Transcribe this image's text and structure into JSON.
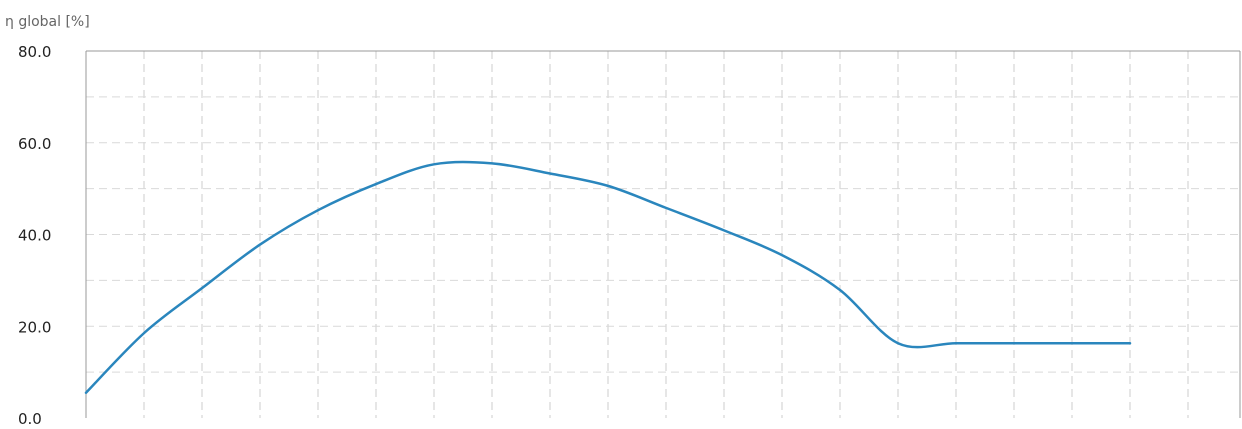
{
  "chart_data": {
    "type": "line",
    "ylabel": "η global [%]",
    "ylim": [
      0,
      80
    ],
    "yticks": [
      "80.0",
      "60.0",
      "40.0",
      "20.0",
      "0.0"
    ],
    "ytick_values": [
      80,
      60,
      40,
      20,
      0
    ],
    "grid": true,
    "x_grid_count": 20,
    "series": [
      {
        "color": "#2a86bd",
        "x": [
          0,
          1,
          2,
          3,
          4,
          5,
          6,
          7,
          8,
          9,
          10,
          11,
          12,
          13,
          14,
          15,
          16,
          17,
          18
        ],
        "values": [
          5.5,
          18.5,
          28.3,
          37.8,
          45.3,
          51.0,
          55.3,
          55.5,
          53.3,
          50.6,
          45.8,
          40.9,
          35.5,
          27.9,
          16.3,
          16.3,
          16.3,
          16.3,
          16.3
        ]
      }
    ]
  }
}
